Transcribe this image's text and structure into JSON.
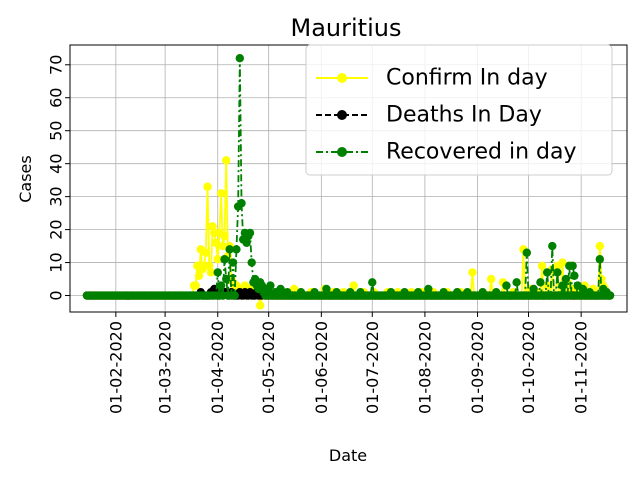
{
  "chart_data": {
    "type": "line",
    "title": "Mauritius",
    "xlabel": "Date",
    "ylabel": "Cases",
    "x_start": "2020-01-15",
    "x_end": "2020-11-18",
    "xlim": [
      "2020-01-05",
      "2020-11-28"
    ],
    "ylim": [
      -5,
      76
    ],
    "yticks": [
      0,
      10,
      20,
      30,
      40,
      50,
      60,
      70
    ],
    "xticks": [
      "01-02-2020",
      "01-03-2020",
      "01-04-2020",
      "01-05-2020",
      "01-06-2020",
      "01-07-2020",
      "01-08-2020",
      "01-09-2020",
      "01-10-2020",
      "01-11-2020"
    ],
    "grid": true,
    "legend_position": "top-right",
    "series": [
      {
        "name": "Confirm In day",
        "color": "#ffff00",
        "linestyle": "solid",
        "marker": "circle",
        "points": [
          [
            "2020-03-18",
            3
          ],
          [
            "2020-03-19",
            3
          ],
          [
            "2020-03-20",
            9
          ],
          [
            "2020-03-21",
            6
          ],
          [
            "2020-03-22",
            14
          ],
          [
            "2020-03-23",
            8
          ],
          [
            "2020-03-24",
            9
          ],
          [
            "2020-03-25",
            13
          ],
          [
            "2020-03-26",
            33
          ],
          [
            "2020-03-27",
            9
          ],
          [
            "2020-03-28",
            7
          ],
          [
            "2020-03-29",
            21
          ],
          [
            "2020-03-30",
            19
          ],
          [
            "2020-03-31",
            16
          ],
          [
            "2020-04-01",
            11
          ],
          [
            "2020-04-02",
            19
          ],
          [
            "2020-04-03",
            31
          ],
          [
            "2020-04-04",
            15
          ],
          [
            "2020-04-05",
            18
          ],
          [
            "2020-04-06",
            41
          ],
          [
            "2020-04-07",
            12
          ],
          [
            "2020-04-08",
            15
          ],
          [
            "2020-04-09",
            5
          ],
          [
            "2020-04-10",
            4
          ],
          [
            "2020-04-11",
            2
          ],
          [
            "2020-04-12",
            3
          ],
          [
            "2020-04-13",
            1
          ],
          [
            "2020-04-14",
            2
          ],
          [
            "2020-04-15",
            0
          ],
          [
            "2020-04-16",
            1
          ],
          [
            "2020-04-17",
            3
          ],
          [
            "2020-04-18",
            1
          ],
          [
            "2020-04-19",
            2
          ],
          [
            "2020-04-20",
            0
          ],
          [
            "2020-04-21",
            1
          ],
          [
            "2020-04-22",
            3
          ],
          [
            "2020-04-23",
            2
          ],
          [
            "2020-04-24",
            1
          ],
          [
            "2020-04-25",
            1
          ],
          [
            "2020-04-26",
            -3
          ],
          [
            "2020-04-27",
            1
          ],
          [
            "2020-04-28",
            0
          ],
          [
            "2020-04-29",
            0
          ],
          [
            "2020-04-30",
            0
          ],
          [
            "2020-05-06",
            1
          ],
          [
            "2020-05-10",
            1
          ],
          [
            "2020-05-16",
            2
          ],
          [
            "2020-05-20",
            1
          ],
          [
            "2020-05-26",
            1
          ],
          [
            "2020-06-03",
            2
          ],
          [
            "2020-06-08",
            1
          ],
          [
            "2020-06-14",
            1
          ],
          [
            "2020-06-20",
            3
          ],
          [
            "2020-06-26",
            1
          ],
          [
            "2020-07-02",
            1
          ],
          [
            "2020-07-10",
            1
          ],
          [
            "2020-07-16",
            1
          ],
          [
            "2020-07-24",
            1
          ],
          [
            "2020-07-30",
            1
          ],
          [
            "2020-08-06",
            1
          ],
          [
            "2020-08-14",
            1
          ],
          [
            "2020-08-22",
            1
          ],
          [
            "2020-08-29",
            7
          ],
          [
            "2020-09-04",
            1
          ],
          [
            "2020-09-09",
            5
          ],
          [
            "2020-09-16",
            4
          ],
          [
            "2020-09-22",
            1
          ],
          [
            "2020-09-28",
            14
          ],
          [
            "2020-10-02",
            2
          ],
          [
            "2020-10-06",
            1
          ],
          [
            "2020-10-09",
            9
          ],
          [
            "2020-10-12",
            3
          ],
          [
            "2020-10-15",
            8
          ],
          [
            "2020-10-18",
            9
          ],
          [
            "2020-10-21",
            10
          ],
          [
            "2020-10-24",
            4
          ],
          [
            "2020-10-27",
            2
          ],
          [
            "2020-10-30",
            1
          ],
          [
            "2020-11-03",
            3
          ],
          [
            "2020-11-08",
            2
          ],
          [
            "2020-11-12",
            15
          ],
          [
            "2020-11-13",
            5
          ],
          [
            "2020-11-14",
            3
          ],
          [
            "2020-11-15",
            2
          ]
        ]
      },
      {
        "name": "Deaths In Day",
        "color": "#000000",
        "linestyle": "dashed",
        "marker": "circle",
        "points": [
          [
            "2020-03-22",
            1
          ],
          [
            "2020-03-28",
            1
          ],
          [
            "2020-03-30",
            2
          ],
          [
            "2020-03-31",
            1
          ],
          [
            "2020-04-03",
            1
          ],
          [
            "2020-04-05",
            1
          ],
          [
            "2020-04-06",
            1
          ],
          [
            "2020-04-09",
            1
          ],
          [
            "2020-04-14",
            1
          ],
          [
            "2020-04-17",
            1
          ],
          [
            "2020-04-20",
            1
          ],
          [
            "2020-04-24",
            1
          ],
          [
            "2020-04-28",
            1
          ]
        ]
      },
      {
        "name": "Recovered in day",
        "color": "#008000",
        "linestyle": "dashdot",
        "marker": "circle",
        "points": [
          [
            "2020-04-01",
            7
          ],
          [
            "2020-04-03",
            3
          ],
          [
            "2020-04-05",
            11
          ],
          [
            "2020-04-06",
            5
          ],
          [
            "2020-04-08",
            14
          ],
          [
            "2020-04-10",
            10
          ],
          [
            "2020-04-12",
            14
          ],
          [
            "2020-04-13",
            27
          ],
          [
            "2020-04-14",
            72
          ],
          [
            "2020-04-15",
            28
          ],
          [
            "2020-04-16",
            17
          ],
          [
            "2020-04-17",
            19
          ],
          [
            "2020-04-18",
            16
          ],
          [
            "2020-04-19",
            18
          ],
          [
            "2020-04-20",
            19
          ],
          [
            "2020-04-21",
            10
          ],
          [
            "2020-04-22",
            4
          ],
          [
            "2020-04-23",
            5
          ],
          [
            "2020-04-24",
            3
          ],
          [
            "2020-04-25",
            2
          ],
          [
            "2020-04-26",
            4
          ],
          [
            "2020-04-27",
            3
          ],
          [
            "2020-04-28",
            1
          ],
          [
            "2020-04-30",
            2
          ],
          [
            "2020-05-02",
            3
          ],
          [
            "2020-05-05",
            1
          ],
          [
            "2020-05-08",
            2
          ],
          [
            "2020-05-12",
            1
          ],
          [
            "2020-05-20",
            1
          ],
          [
            "2020-05-28",
            1
          ],
          [
            "2020-06-04",
            2
          ],
          [
            "2020-06-10",
            1
          ],
          [
            "2020-06-18",
            1
          ],
          [
            "2020-06-24",
            1
          ],
          [
            "2020-07-01",
            4
          ],
          [
            "2020-07-12",
            1
          ],
          [
            "2020-07-20",
            1
          ],
          [
            "2020-07-28",
            1
          ],
          [
            "2020-08-03",
            2
          ],
          [
            "2020-08-12",
            1
          ],
          [
            "2020-08-20",
            1
          ],
          [
            "2020-08-26",
            1
          ],
          [
            "2020-09-04",
            1
          ],
          [
            "2020-09-12",
            1
          ],
          [
            "2020-09-18",
            3
          ],
          [
            "2020-09-24",
            4
          ],
          [
            "2020-09-30",
            13
          ],
          [
            "2020-10-04",
            2
          ],
          [
            "2020-10-08",
            4
          ],
          [
            "2020-10-12",
            7
          ],
          [
            "2020-10-15",
            15
          ],
          [
            "2020-10-18",
            7
          ],
          [
            "2020-10-21",
            3
          ],
          [
            "2020-10-23",
            5
          ],
          [
            "2020-10-25",
            9
          ],
          [
            "2020-10-27",
            9
          ],
          [
            "2020-10-28",
            6
          ],
          [
            "2020-10-30",
            3
          ],
          [
            "2020-11-02",
            2
          ],
          [
            "2020-11-06",
            1
          ],
          [
            "2020-11-12",
            11
          ],
          [
            "2020-11-14",
            2
          ],
          [
            "2020-11-16",
            1
          ]
        ]
      }
    ]
  }
}
